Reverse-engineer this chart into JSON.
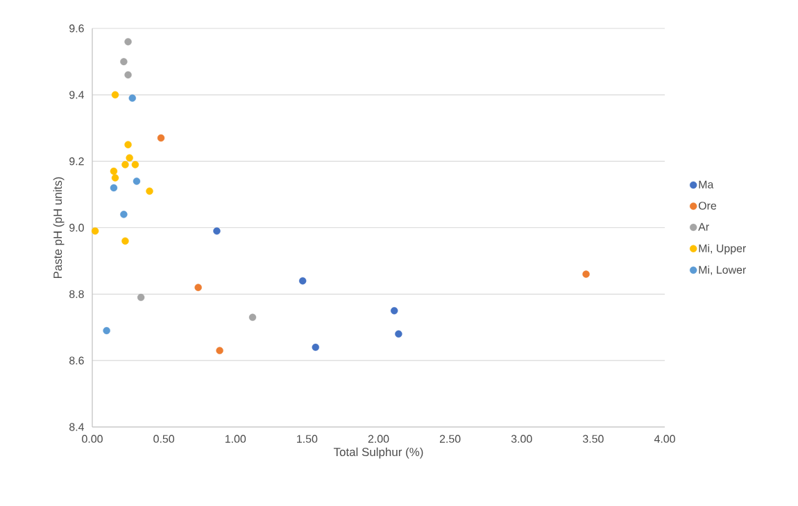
{
  "chart_data": {
    "type": "scatter",
    "xlabel": "Total Sulphur (%)",
    "ylabel": "Paste pH (pH units)",
    "xlim": [
      0,
      4
    ],
    "ylim": [
      8.4,
      9.6
    ],
    "xticks": [
      {
        "value": 0,
        "label": "0.00"
      },
      {
        "value": 0.5,
        "label": "0.50"
      },
      {
        "value": 1,
        "label": "1.00"
      },
      {
        "value": 1.5,
        "label": "1.50"
      },
      {
        "value": 2,
        "label": "2.00"
      },
      {
        "value": 2.5,
        "label": "2.50"
      },
      {
        "value": 3,
        "label": "3.00"
      },
      {
        "value": 3.5,
        "label": "3.50"
      },
      {
        "value": 4,
        "label": "4.00"
      }
    ],
    "yticks": [
      8.4,
      8.6,
      8.8,
      {
        "value": 9,
        "label": "9.0"
      },
      9.2,
      9.4,
      9.6
    ],
    "grid": "y",
    "legend": "right",
    "marker": "circle",
    "series": [
      {
        "name": "Ma",
        "color": "#4472c4",
        "x": [
          0.87,
          1.47,
          1.56,
          2.11,
          2.14
        ],
        "values": [
          8.99,
          8.84,
          8.64,
          8.75,
          8.68
        ]
      },
      {
        "name": "Ore",
        "color": "#ed7d31",
        "x": [
          0.48,
          0.74,
          0.89,
          3.45
        ],
        "values": [
          9.27,
          8.82,
          8.63,
          8.86
        ]
      },
      {
        "name": "Ar",
        "color": "#a5a5a5",
        "x": [
          0.25,
          0.22,
          0.25,
          0.34,
          1.12
        ],
        "values": [
          9.56,
          9.5,
          9.46,
          8.79,
          8.73
        ]
      },
      {
        "name": "Mi, Upper",
        "color": "#ffc000",
        "x": [
          0.16,
          0.25,
          0.26,
          0.23,
          0.3,
          0.15,
          0.16,
          0.4,
          0.02,
          0.23
        ],
        "values": [
          9.4,
          9.25,
          9.21,
          9.19,
          9.19,
          9.17,
          9.15,
          9.11,
          8.99,
          8.96
        ]
      },
      {
        "name": "Mi, Lower",
        "color": "#5b9bd5",
        "x": [
          0.28,
          0.31,
          0.15,
          0.22,
          0.1
        ],
        "values": [
          9.39,
          9.14,
          9.12,
          9.04,
          8.69
        ]
      }
    ]
  }
}
